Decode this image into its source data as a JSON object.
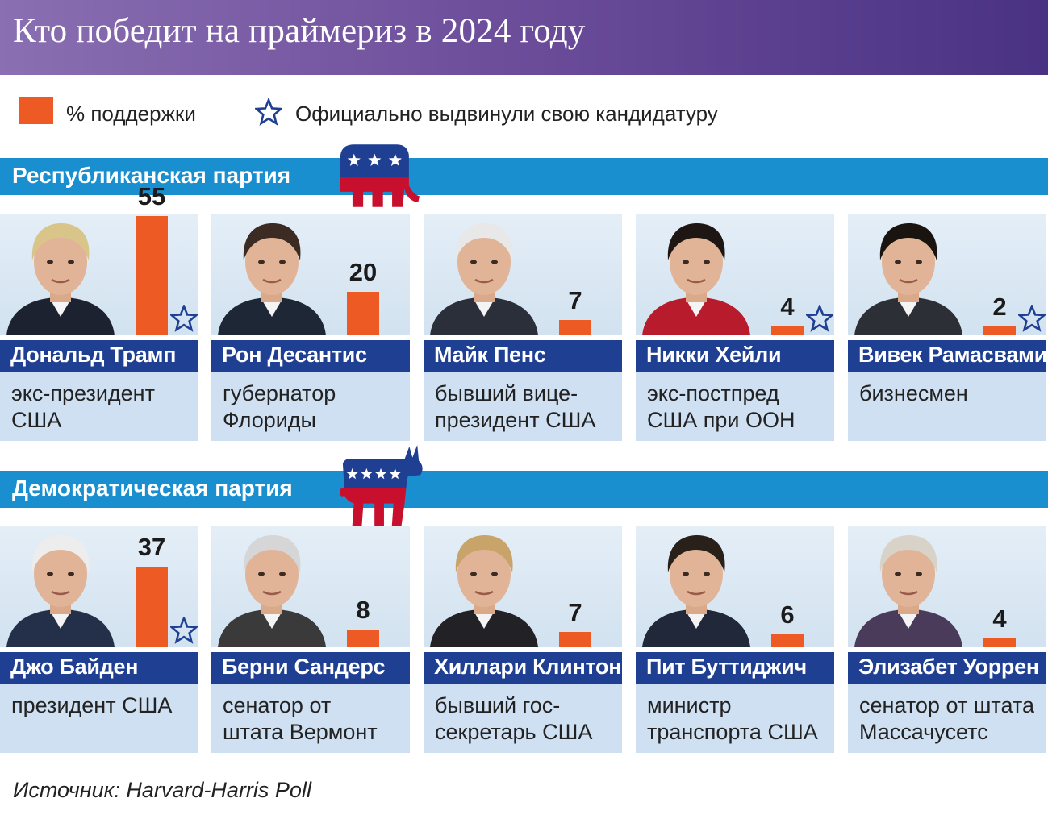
{
  "title": "Кто победит на праймериз в 2024 году",
  "legend": {
    "support_label": "% поддержки",
    "declared_label": "Официально выдвинули свою кандидатуру"
  },
  "colors": {
    "header": "#6e4f9c",
    "party_bar": "#1a8fd0",
    "bar": "#ee5a24",
    "name_bar": "#1f3f93",
    "desc_bg": "#cfe0f2",
    "star": "#1f3f93",
    "republican_red": "#c8102e"
  },
  "source": "Источник: Harvard-Harris Poll",
  "chart_data": [
    {
      "type": "bar",
      "title": "Республиканская партия",
      "series_label": "% поддержки",
      "ylim": [
        0,
        55
      ],
      "categories": [
        "Дональд Трамп",
        "Рон Десантис",
        "Майк Пенс",
        "Никки Хейли",
        "Вивек Рамасвами"
      ],
      "values": [
        55,
        20,
        7,
        4,
        2
      ],
      "roles": [
        "экс-президент\nСША",
        "губернатор\nФлориды",
        "бывший вице-\nпрезидент США",
        "экс-постпред\nСША при ООН",
        "бизнесмен"
      ],
      "declared": [
        true,
        false,
        false,
        true,
        true
      ]
    },
    {
      "type": "bar",
      "title": "Демократическая партия",
      "series_label": "% поддержки",
      "ylim": [
        0,
        55
      ],
      "categories": [
        "Джо Байден",
        "Берни Сандерс",
        "Хиллари Клинтон",
        "Пит Буттиджич",
        "Элизабет Уоррен"
      ],
      "values": [
        37,
        8,
        7,
        6,
        4
      ],
      "roles": [
        "президент США",
        "сенатор от\nштата Вермонт",
        "бывший гос-\nсекретарь США",
        "министр\nтранспорта США",
        "сенатор от штата\nМассачусетс"
      ],
      "declared": [
        true,
        false,
        false,
        false,
        false
      ]
    }
  ]
}
